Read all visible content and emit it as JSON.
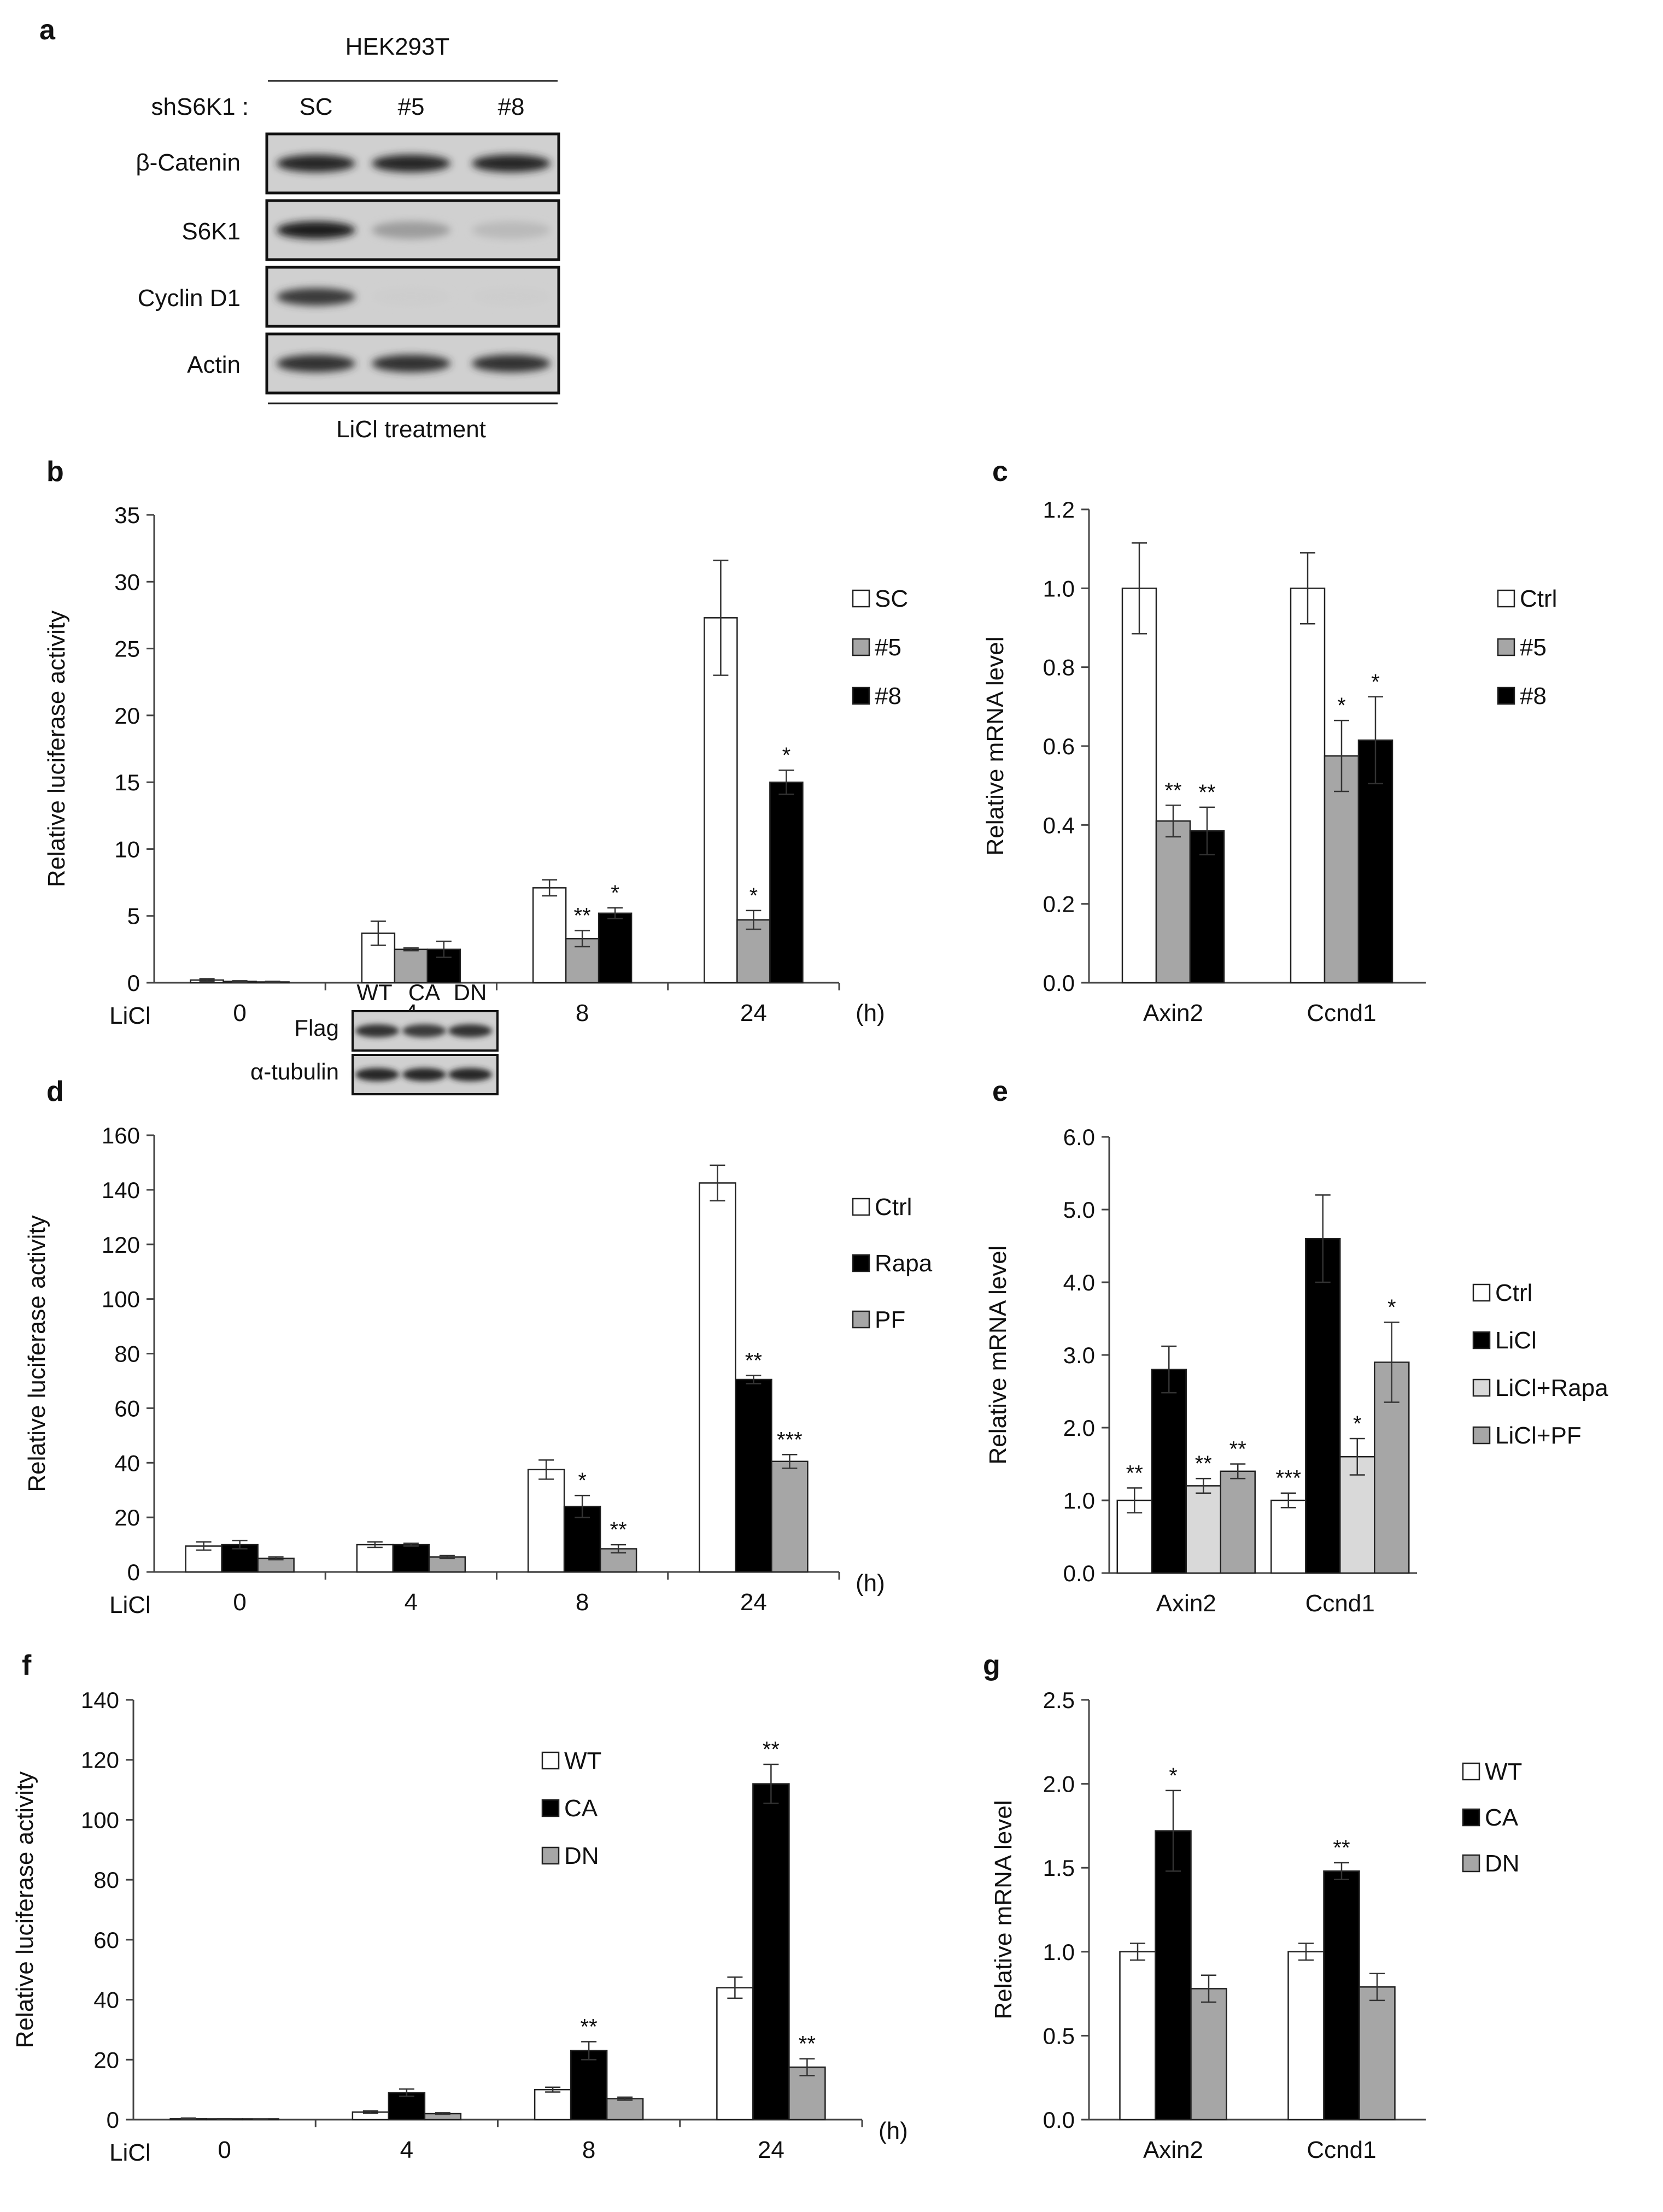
{
  "panel_a": {
    "label": "a",
    "cell_line": "HEK293T",
    "lane_header": "shS6K1 :",
    "lanes": [
      "SC",
      "#5",
      "#8"
    ],
    "rows": [
      {
        "label": "β-Catenin",
        "intensity": [
          0.9,
          0.9,
          0.9
        ]
      },
      {
        "label": "S6K1",
        "intensity": [
          0.95,
          0.3,
          0.15
        ]
      },
      {
        "label": "Cyclin D1",
        "intensity": [
          0.8,
          0.05,
          0.05
        ]
      },
      {
        "label": "Actin",
        "intensity": [
          0.85,
          0.85,
          0.85
        ]
      }
    ],
    "footer": "LiCl treatment"
  },
  "chart_data": [
    {
      "id": "b",
      "panel_label": "b",
      "type": "bar",
      "title": "",
      "xlabel": "LiCl",
      "x_unit": "(h)",
      "ylabel": "Relative luciferase activity",
      "categories": [
        "0",
        "4",
        "8",
        "24"
      ],
      "ylim": [
        0,
        35
      ],
      "yticks": [
        0,
        5,
        10,
        15,
        20,
        25,
        30,
        35
      ],
      "tick_decimals": 0,
      "group_dividers": true,
      "legend_position": "right",
      "series": [
        {
          "name": "SC",
          "color": "#ffffff",
          "values": [
            0.2,
            3.7,
            7.1,
            27.3
          ],
          "errors": [
            0.1,
            0.9,
            0.6,
            4.3
          ],
          "annotations": [
            "",
            "",
            "",
            ""
          ]
        },
        {
          "name": "#5",
          "color": "#a6a6a6",
          "values": [
            0.1,
            2.5,
            3.3,
            4.7
          ],
          "errors": [
            0.05,
            0.1,
            0.6,
            0.7
          ],
          "annotations": [
            "",
            "",
            "**",
            "*"
          ]
        },
        {
          "name": "#8",
          "color": "#000000",
          "values": [
            0.05,
            2.5,
            5.2,
            15.0
          ],
          "errors": [
            0.05,
            0.6,
            0.4,
            0.9
          ],
          "annotations": [
            "",
            "",
            "*",
            "*"
          ]
        }
      ]
    },
    {
      "id": "c",
      "panel_label": "c",
      "type": "bar",
      "title": "",
      "xlabel": "",
      "x_unit": "",
      "ylabel": "Relative mRNA level",
      "categories": [
        "Axin2",
        "Ccnd1"
      ],
      "ylim": [
        0,
        1.2
      ],
      "yticks": [
        0.0,
        0.2,
        0.4,
        0.6,
        0.8,
        1.0,
        1.2
      ],
      "tick_decimals": 1,
      "group_dividers": false,
      "legend_position": "right",
      "series": [
        {
          "name": "Ctrl",
          "color": "#ffffff",
          "values": [
            1.0,
            1.0
          ],
          "errors": [
            0.115,
            0.09
          ],
          "annotations": [
            "",
            ""
          ]
        },
        {
          "name": "#5",
          "color": "#a6a6a6",
          "values": [
            0.41,
            0.575
          ],
          "errors": [
            0.04,
            0.09
          ],
          "annotations": [
            "**",
            "*"
          ]
        },
        {
          "name": "#8",
          "color": "#000000",
          "values": [
            0.385,
            0.615
          ],
          "errors": [
            0.06,
            0.11
          ],
          "annotations": [
            "**",
            "*"
          ]
        }
      ]
    },
    {
      "id": "d",
      "panel_label": "d",
      "type": "bar",
      "title": "",
      "xlabel": "LiCl",
      "x_unit": "(h)",
      "ylabel": "Relative luciferase activity",
      "categories": [
        "0",
        "4",
        "8",
        "24"
      ],
      "ylim": [
        0,
        160
      ],
      "yticks": [
        0,
        20,
        40,
        60,
        80,
        100,
        120,
        140,
        160
      ],
      "tick_decimals": 0,
      "group_dividers": true,
      "legend_position": "right",
      "series": [
        {
          "name": "Ctrl",
          "color": "#ffffff",
          "values": [
            9.5,
            10.0,
            37.5,
            142.5
          ],
          "errors": [
            1.5,
            1.0,
            3.5,
            6.5
          ],
          "annotations": [
            "",
            "",
            "",
            ""
          ]
        },
        {
          "name": "Rapa",
          "color": "#000000",
          "values": [
            10.0,
            10.0,
            24.0,
            70.5
          ],
          "errors": [
            1.5,
            0.5,
            4.0,
            1.5
          ],
          "annotations": [
            "",
            "",
            "*",
            "**"
          ]
        },
        {
          "name": "PF",
          "color": "#a6a6a6",
          "values": [
            5.0,
            5.5,
            8.5,
            40.5
          ],
          "errors": [
            0.5,
            0.5,
            1.5,
            2.5
          ],
          "annotations": [
            "",
            "",
            "**",
            "***"
          ]
        }
      ]
    },
    {
      "id": "e",
      "panel_label": "e",
      "type": "bar",
      "title": "",
      "xlabel": "",
      "x_unit": "",
      "ylabel": "Relative mRNA level",
      "categories": [
        "Axin2",
        "Ccnd1"
      ],
      "ylim": [
        0,
        6
      ],
      "yticks": [
        0.0,
        1.0,
        2.0,
        3.0,
        4.0,
        5.0,
        6.0
      ],
      "tick_decimals": 1,
      "group_dividers": false,
      "legend_position": "right",
      "series": [
        {
          "name": "Ctrl",
          "color": "#ffffff",
          "values": [
            1.0,
            1.0
          ],
          "errors": [
            0.17,
            0.1
          ],
          "annotations": [
            "**",
            "***"
          ]
        },
        {
          "name": "LiCl",
          "color": "#000000",
          "values": [
            2.8,
            4.6
          ],
          "errors": [
            0.32,
            0.6
          ],
          "annotations": [
            "",
            ""
          ]
        },
        {
          "name": "LiCl+Rapa",
          "color": "#d9d9d9",
          "values": [
            1.2,
            1.6
          ],
          "errors": [
            0.1,
            0.25
          ],
          "annotations": [
            "**",
            "*"
          ]
        },
        {
          "name": "LiCl+PF",
          "color": "#a6a6a6",
          "values": [
            1.4,
            2.9
          ],
          "errors": [
            0.1,
            0.55
          ],
          "annotations": [
            "**",
            "*"
          ]
        }
      ]
    },
    {
      "id": "f",
      "panel_label": "f",
      "type": "bar",
      "title": "",
      "xlabel": "LiCl",
      "x_unit": "(h)",
      "ylabel": "Relative luciferase activity",
      "categories": [
        "0",
        "4",
        "8",
        "24"
      ],
      "ylim": [
        0,
        140
      ],
      "yticks": [
        0,
        20,
        40,
        60,
        80,
        100,
        120,
        140
      ],
      "tick_decimals": 0,
      "group_dividers": true,
      "legend_position": "right",
      "series": [
        {
          "name": "WT",
          "color": "#ffffff",
          "values": [
            0.3,
            2.5,
            10.0,
            44.0
          ],
          "errors": [
            0.2,
            0.4,
            0.8,
            3.5
          ],
          "annotations": [
            "",
            "",
            "",
            ""
          ]
        },
        {
          "name": "CA",
          "color": "#000000",
          "values": [
            0.2,
            9.0,
            23.0,
            112.0
          ],
          "errors": [
            0.1,
            1.2,
            3.0,
            6.5
          ],
          "annotations": [
            "",
            "",
            "**",
            "**"
          ]
        },
        {
          "name": "DN",
          "color": "#a6a6a6",
          "values": [
            0.1,
            2.0,
            7.0,
            17.5
          ],
          "errors": [
            0.1,
            0.3,
            0.5,
            2.8
          ],
          "annotations": [
            "",
            "",
            "",
            "**"
          ]
        }
      ]
    },
    {
      "id": "g",
      "panel_label": "g",
      "type": "bar",
      "title": "",
      "xlabel": "",
      "x_unit": "",
      "ylabel": "Relative mRNA level",
      "categories": [
        "Axin2",
        "Ccnd1"
      ],
      "ylim": [
        0,
        2.5
      ],
      "yticks": [
        0.0,
        0.5,
        1.0,
        1.5,
        2.0,
        2.5
      ],
      "tick_decimals": 1,
      "group_dividers": false,
      "legend_position": "right",
      "series": [
        {
          "name": "WT",
          "color": "#ffffff",
          "values": [
            1.0,
            1.0
          ],
          "errors": [
            0.05,
            0.05
          ],
          "annotations": [
            "",
            ""
          ]
        },
        {
          "name": "CA",
          "color": "#000000",
          "values": [
            1.72,
            1.48
          ],
          "errors": [
            0.24,
            0.05
          ],
          "annotations": [
            "*",
            "**"
          ]
        },
        {
          "name": "DN",
          "color": "#a6a6a6",
          "values": [
            0.78,
            0.79
          ],
          "errors": [
            0.08,
            0.08
          ],
          "annotations": [
            "",
            ""
          ]
        }
      ]
    }
  ],
  "panel_f_inset": {
    "lanes": [
      "WT",
      "CA",
      "DN"
    ],
    "rows": [
      {
        "label": "Flag",
        "intensity": [
          0.85,
          0.8,
          0.85
        ]
      },
      {
        "label": "α-tubulin",
        "intensity": [
          0.9,
          0.9,
          0.9
        ]
      }
    ]
  }
}
